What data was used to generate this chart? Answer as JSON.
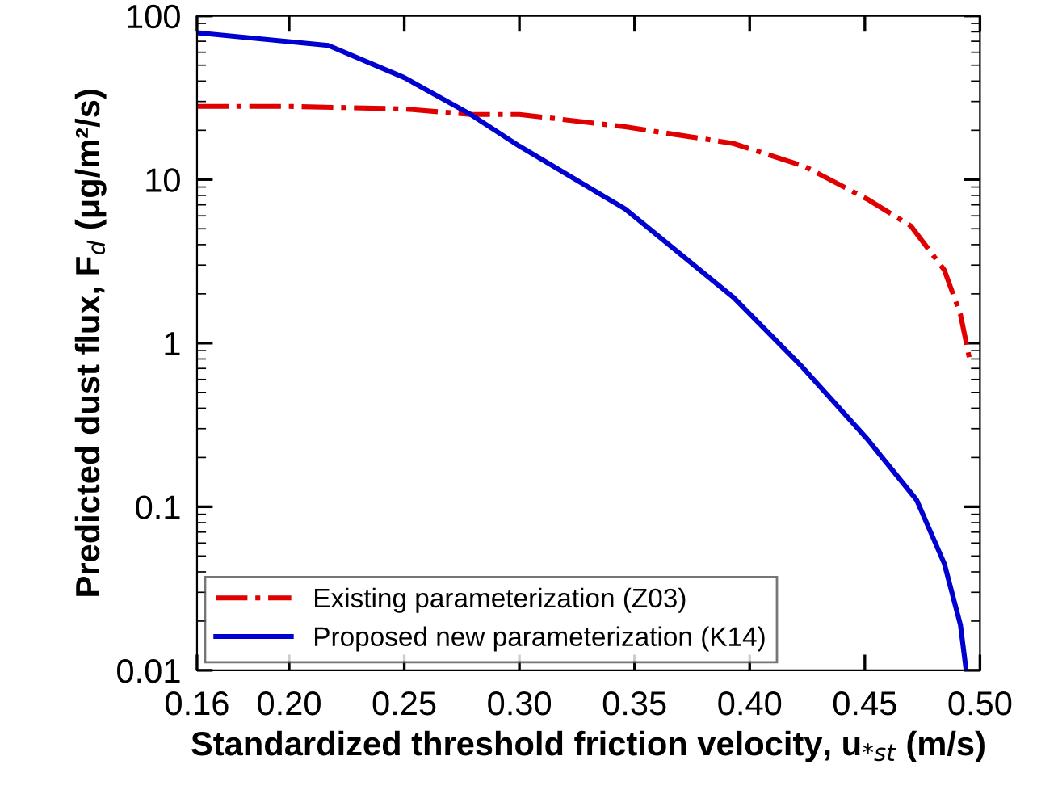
{
  "chart_data": {
    "type": "line",
    "xlabel": "Standardized threshold friction velocity, u$_{*st}$ (m/s)",
    "ylabel": "Predicted dust flux, F$_{d}$ (μg/m²/s)",
    "xlim": [
      0.16,
      0.5
    ],
    "xticks": [
      0.16,
      {
        "value": 0.2,
        "label": "0.20"
      },
      0.25,
      {
        "value": 0.3,
        "label": "0.30"
      },
      0.35,
      {
        "value": 0.4,
        "label": "0.40"
      },
      0.45,
      {
        "value": 0.5,
        "label": "0.50"
      }
    ],
    "ylim": [
      0.01,
      100
    ],
    "yticks": [
      0.01,
      0.1,
      1,
      10,
      100
    ],
    "log": "y",
    "legend": "bottom left",
    "grid": false,
    "series": [
      {
        "name": "Existing parameterization (Z03)",
        "color": "#e00000",
        "line_style": "dashdot",
        "x": [
          0.16,
          0.2,
          0.25,
          0.2788,
          0.3,
          0.346,
          0.393,
          0.424,
          0.451,
          0.47,
          0.4845,
          0.4915,
          0.4958
        ],
        "values": [
          28,
          28,
          27,
          25,
          25,
          21,
          16.6,
          12,
          7.6,
          5.2,
          2.8,
          1.5,
          0.76
        ]
      },
      {
        "name": "Proposed new parameterization (K14)",
        "color": "#0000d0",
        "line_style": "solid",
        "x": [
          0.16,
          0.217,
          0.25,
          0.2788,
          0.3,
          0.346,
          0.393,
          0.423,
          0.451,
          0.4725,
          0.4845,
          0.4915,
          0.494
        ],
        "values": [
          79,
          66,
          42,
          25,
          16,
          6.6,
          1.9,
          0.71,
          0.26,
          0.11,
          0.045,
          0.019,
          0.01
        ]
      }
    ]
  }
}
